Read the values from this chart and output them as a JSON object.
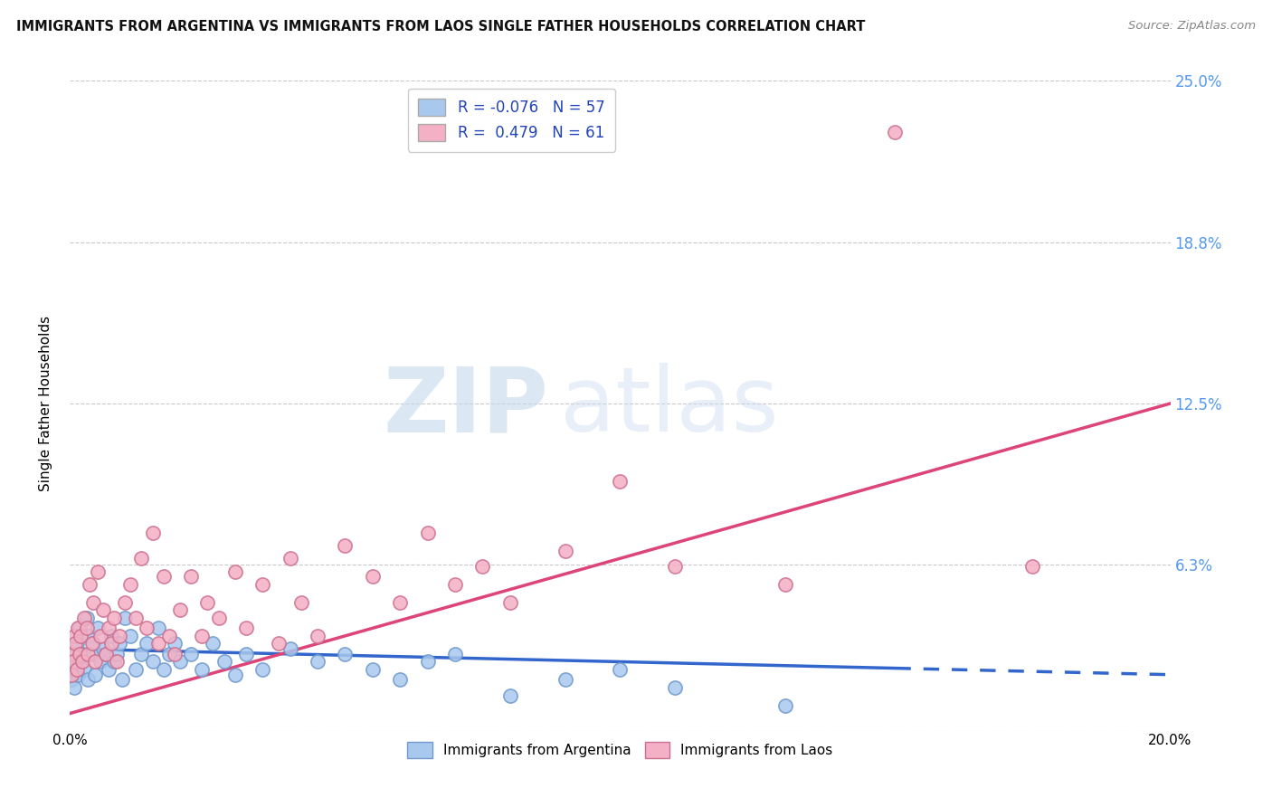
{
  "title": "IMMIGRANTS FROM ARGENTINA VS IMMIGRANTS FROM LAOS SINGLE FATHER HOUSEHOLDS CORRELATION CHART",
  "source": "Source: ZipAtlas.com",
  "ylabel": "Single Father Households",
  "xlim": [
    0.0,
    0.2
  ],
  "ylim": [
    0.0,
    0.25
  ],
  "yticks": [
    0.0,
    0.0625,
    0.125,
    0.1875,
    0.25
  ],
  "ytick_labels": [
    "",
    "6.3%",
    "12.5%",
    "18.8%",
    "25.0%"
  ],
  "xticks": [
    0.0,
    0.05,
    0.1,
    0.15,
    0.2
  ],
  "xtick_labels": [
    "0.0%",
    "",
    "",
    "",
    "20.0%"
  ],
  "argentina_color": "#a8c8ee",
  "argentina_edge_color": "#7099cc",
  "laos_color": "#f4b0c4",
  "laos_edge_color": "#cc7090",
  "argentina_line_color": "#3366cc",
  "laos_line_color": "#dd4477",
  "background_color": "#ffffff",
  "grid_color": "#bbbbbb",
  "right_label_color": "#5599ee",
  "legend1_label1": "R = -0.076   N = 57",
  "legend1_label2": "R =  0.479   N = 61",
  "legend2_label1": "Immigrants from Argentina",
  "legend2_label2": "Immigrants from Laos",
  "argentina_scatter_x": [
    0.0002,
    0.0004,
    0.0006,
    0.0008,
    0.001,
    0.0012,
    0.0015,
    0.0018,
    0.002,
    0.0022,
    0.0025,
    0.003,
    0.0032,
    0.0035,
    0.004,
    0.0042,
    0.0045,
    0.005,
    0.0055,
    0.006,
    0.0065,
    0.007,
    0.0075,
    0.008,
    0.0085,
    0.009,
    0.0095,
    0.01,
    0.011,
    0.012,
    0.013,
    0.014,
    0.015,
    0.016,
    0.017,
    0.018,
    0.019,
    0.02,
    0.022,
    0.024,
    0.026,
    0.028,
    0.03,
    0.032,
    0.035,
    0.04,
    0.045,
    0.05,
    0.055,
    0.06,
    0.065,
    0.07,
    0.08,
    0.09,
    0.1,
    0.11,
    0.13
  ],
  "argentina_scatter_y": [
    0.018,
    0.022,
    0.028,
    0.015,
    0.025,
    0.032,
    0.02,
    0.038,
    0.025,
    0.028,
    0.022,
    0.042,
    0.018,
    0.035,
    0.028,
    0.032,
    0.02,
    0.038,
    0.025,
    0.03,
    0.028,
    0.022,
    0.035,
    0.025,
    0.028,
    0.032,
    0.018,
    0.042,
    0.035,
    0.022,
    0.028,
    0.032,
    0.025,
    0.038,
    0.022,
    0.028,
    0.032,
    0.025,
    0.028,
    0.022,
    0.032,
    0.025,
    0.02,
    0.028,
    0.022,
    0.03,
    0.025,
    0.028,
    0.022,
    0.018,
    0.025,
    0.028,
    0.012,
    0.018,
    0.022,
    0.015,
    0.008
  ],
  "laos_scatter_x": [
    0.0002,
    0.0004,
    0.0006,
    0.0008,
    0.001,
    0.0012,
    0.0015,
    0.0018,
    0.002,
    0.0022,
    0.0025,
    0.003,
    0.0032,
    0.0035,
    0.004,
    0.0042,
    0.0045,
    0.005,
    0.0055,
    0.006,
    0.0065,
    0.007,
    0.0075,
    0.008,
    0.0085,
    0.009,
    0.01,
    0.011,
    0.012,
    0.013,
    0.014,
    0.015,
    0.016,
    0.017,
    0.018,
    0.019,
    0.02,
    0.022,
    0.024,
    0.025,
    0.027,
    0.03,
    0.032,
    0.035,
    0.038,
    0.04,
    0.042,
    0.045,
    0.05,
    0.055,
    0.06,
    0.065,
    0.07,
    0.075,
    0.08,
    0.09,
    0.1,
    0.11,
    0.13,
    0.15,
    0.175
  ],
  "laos_scatter_y": [
    0.02,
    0.028,
    0.025,
    0.035,
    0.032,
    0.022,
    0.038,
    0.028,
    0.035,
    0.025,
    0.042,
    0.038,
    0.028,
    0.055,
    0.032,
    0.048,
    0.025,
    0.06,
    0.035,
    0.045,
    0.028,
    0.038,
    0.032,
    0.042,
    0.025,
    0.035,
    0.048,
    0.055,
    0.042,
    0.065,
    0.038,
    0.075,
    0.032,
    0.058,
    0.035,
    0.028,
    0.045,
    0.058,
    0.035,
    0.048,
    0.042,
    0.06,
    0.038,
    0.055,
    0.032,
    0.065,
    0.048,
    0.035,
    0.07,
    0.058,
    0.048,
    0.075,
    0.055,
    0.062,
    0.048,
    0.068,
    0.095,
    0.062,
    0.055,
    0.23,
    0.062
  ],
  "arg_trend_x0": 0.0,
  "arg_trend_x1": 0.2,
  "arg_trend_y0": 0.03,
  "arg_trend_y1": 0.02,
  "laos_trend_x0": 0.0,
  "laos_trend_x1": 0.2,
  "laos_trend_y0": 0.005,
  "laos_trend_y1": 0.125
}
